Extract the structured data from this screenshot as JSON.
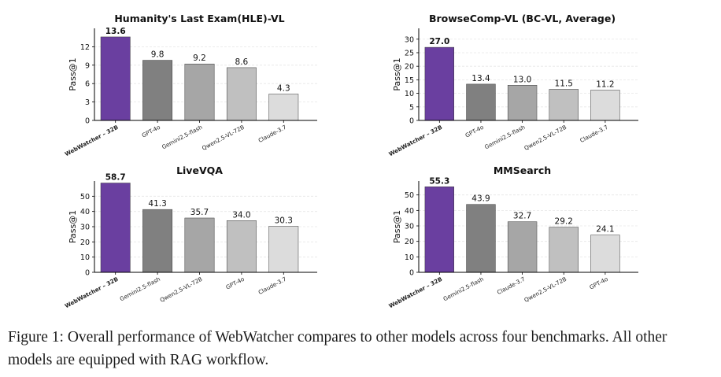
{
  "chart_data": [
    {
      "type": "bar",
      "title": "Humanity's Last Exam(HLE)-VL",
      "xlabel": "",
      "ylabel": "Pass@1",
      "categories": [
        "WebWatcher – 32B",
        "GPT-4o",
        "Gemini2.5-flash",
        "Qwen2.5-VL-72B",
        "Claude-3.7"
      ],
      "values": [
        13.6,
        9.8,
        9.2,
        8.6,
        4.3
      ],
      "value_labels": [
        "13.6",
        "9.8",
        "9.2",
        "8.6",
        "4.3"
      ],
      "ylim": [
        0,
        15
      ],
      "yticks": [
        0,
        3,
        6,
        9,
        12
      ],
      "grid": true,
      "colors": [
        "#6a3fa0",
        "#808080",
        "#a6a6a6",
        "#c0c0c0",
        "#dcdcdc"
      ],
      "highlight_first": true
    },
    {
      "type": "bar",
      "title": "BrowseComp-VL (BC-VL, Average)",
      "xlabel": "",
      "ylabel": "Pass@1",
      "categories": [
        "WebWatcher – 32B",
        "GPT-4o",
        "Gemini2.5-flash",
        "Qwen2.5-VL-72B",
        "Claude-3.7"
      ],
      "values": [
        27.0,
        13.4,
        13.0,
        11.5,
        11.2
      ],
      "value_labels": [
        "27.0",
        "13.4",
        "13.0",
        "11.5",
        "11.2"
      ],
      "ylim": [
        0,
        34
      ],
      "yticks": [
        0,
        5,
        10,
        15,
        20,
        25,
        30
      ],
      "grid": true,
      "colors": [
        "#6a3fa0",
        "#808080",
        "#a6a6a6",
        "#c0c0c0",
        "#dcdcdc"
      ],
      "highlight_first": true
    },
    {
      "type": "bar",
      "title": "LiveVQA",
      "xlabel": "",
      "ylabel": "Pass@1",
      "categories": [
        "WebWatcher – 32B",
        "Gemini2.5-flash",
        "Qwen2.5-VL-72B",
        "GPT-4o",
        "Claude-3.7"
      ],
      "values": [
        58.7,
        41.3,
        35.7,
        34.0,
        30.3
      ],
      "value_labels": [
        "58.7",
        "41.3",
        "35.7",
        "34.0",
        "30.3"
      ],
      "ylim": [
        0,
        60
      ],
      "yticks": [
        0,
        10,
        20,
        30,
        40,
        50
      ],
      "grid": true,
      "colors": [
        "#6a3fa0",
        "#808080",
        "#a6a6a6",
        "#c0c0c0",
        "#dcdcdc"
      ],
      "highlight_first": true
    },
    {
      "type": "bar",
      "title": "MMSearch",
      "xlabel": "",
      "ylabel": "Pass@1",
      "categories": [
        "WebWatcher – 32B",
        "Gemini2.5-flash",
        "Claude-3.7",
        "Qwen2.5-VL-72B",
        "GPT-4o"
      ],
      "values": [
        55.3,
        43.9,
        32.7,
        29.2,
        24.1
      ],
      "value_labels": [
        "55.3",
        "43.9",
        "32.7",
        "29.2",
        "24.1"
      ],
      "ylim": [
        0,
        59
      ],
      "yticks": [
        0,
        10,
        20,
        30,
        40,
        50
      ],
      "grid": true,
      "colors": [
        "#6a3fa0",
        "#808080",
        "#a6a6a6",
        "#c0c0c0",
        "#dcdcdc"
      ],
      "highlight_first": true
    }
  ],
  "caption": "Figure 1: Overall performance of WebWatcher compares to other models across four benchmarks. All other models are equipped with RAG workflow."
}
